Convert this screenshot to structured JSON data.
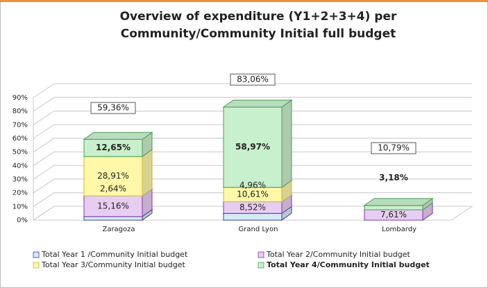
{
  "chart_data": {
    "type": "bar",
    "stacked": true,
    "title": [
      "Overview of expenditure (Y1+2+3+4) per",
      "Community/Community Initial full budget"
    ],
    "categories": [
      "Zaragoza",
      "Grand Lyon",
      "Lombardy"
    ],
    "series": [
      {
        "name": "Total Year 1 /Community Initial budget",
        "color": "#d4ecfa",
        "values": [
          2.64,
          4.96,
          0
        ],
        "value_labels": [
          "2,64%",
          "4,96%",
          null
        ]
      },
      {
        "name": "Total Year 2/Community Initial budget",
        "color": "#e8cdf2",
        "values": [
          15.16,
          8.52,
          7.61
        ],
        "value_labels": [
          "15,16%",
          "8,52%",
          "7,61%"
        ]
      },
      {
        "name": "Total Year 3/Community Initial budget",
        "color": "#fff8a8",
        "values": [
          28.91,
          10.61,
          0
        ],
        "value_labels": [
          "28,91%",
          "10,61%",
          null
        ]
      },
      {
        "name": "Total Year 4/Community Initial budget",
        "color": "#c9f0cc",
        "values": [
          12.65,
          58.97,
          3.18
        ],
        "value_labels": [
          "12,65%",
          "58,97%",
          "3,18%"
        ]
      }
    ],
    "totals": [
      59.36,
      83.06,
      10.79
    ],
    "total_labels": [
      "59,36%",
      "83,06%",
      "10,79%"
    ],
    "ylim": [
      0,
      90
    ],
    "yticks": [
      {
        "value": 0,
        "label": "0%"
      },
      {
        "value": 10,
        "label": "10%"
      },
      {
        "value": 20,
        "label": "20%"
      },
      {
        "value": 30,
        "label": "30%"
      },
      {
        "value": 40,
        "label": "40%"
      },
      {
        "value": 50,
        "label": "50%"
      },
      {
        "value": 60,
        "label": "60%"
      },
      {
        "value": 70,
        "label": "70%"
      },
      {
        "value": 80,
        "label": "80%"
      },
      {
        "value": 90,
        "label": "90%"
      }
    ],
    "grid": true,
    "legend": "bottom"
  }
}
